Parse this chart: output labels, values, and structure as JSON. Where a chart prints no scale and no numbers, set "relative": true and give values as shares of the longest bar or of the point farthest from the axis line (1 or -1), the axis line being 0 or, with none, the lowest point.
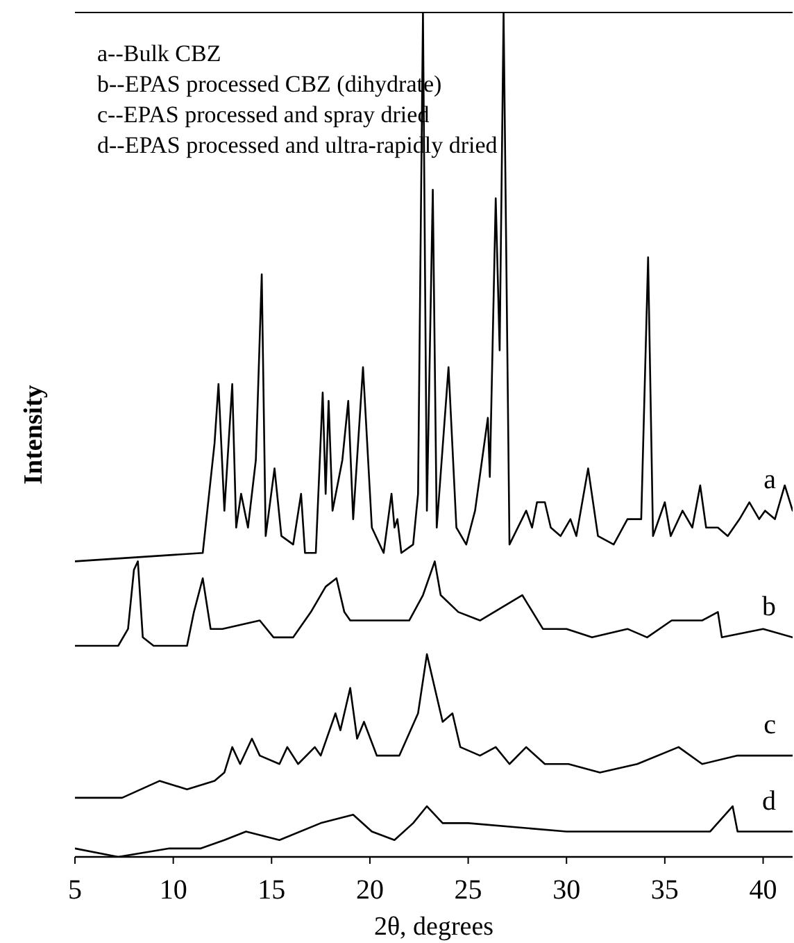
{
  "chart_data": {
    "type": "line",
    "relative": true,
    "xlabel": "2θ, degrees",
    "ylabel": "Intensity",
    "xlim": [
      5,
      41.5
    ],
    "xticks": [
      5,
      10,
      15,
      20,
      25,
      30,
      35,
      40
    ],
    "grid": false,
    "marker": "none",
    "line_style": "solid",
    "annotations": [
      "a--Bulk CBZ",
      "b--EPAS processed CBZ (dihydrate)",
      "c--EPAS processed and spray dried",
      "d--EPAS processed and ultra-rapidly dried"
    ],
    "series": [
      {
        "name": "a",
        "color": "#000000",
        "x": [
          5,
          11.5,
          12.1,
          12.3,
          12.6,
          13.0,
          13.2,
          13.45,
          13.8,
          14.2,
          14.5,
          14.7,
          15.15,
          15.5,
          16.1,
          16.5,
          16.7,
          17.25,
          17.6,
          17.75,
          17.9,
          18.1,
          18.6,
          18.9,
          19.15,
          19.65,
          20.1,
          20.7,
          21.1,
          21.25,
          21.4,
          21.6,
          22.2,
          22.45,
          22.7,
          22.9,
          23.2,
          23.4,
          24.0,
          24.4,
          24.9,
          25.35,
          26.0,
          26.1,
          26.4,
          26.6,
          26.8,
          27.1,
          27.95,
          28.25,
          28.5,
          28.9,
          29.2,
          29.7,
          30.2,
          30.5,
          31.1,
          31.6,
          32.4,
          33.1,
          33.8,
          34.15,
          34.4,
          35.0,
          35.3,
          35.9,
          36.4,
          36.8,
          37.1,
          37.7,
          38.2,
          38.8,
          39.3,
          39.8,
          40.1,
          40.6,
          41.1,
          41.5
        ],
        "values": [
          0.35,
          0.36,
          0.49,
          0.56,
          0.41,
          0.56,
          0.39,
          0.43,
          0.39,
          0.47,
          0.69,
          0.38,
          0.46,
          0.38,
          0.37,
          0.43,
          0.36,
          0.36,
          0.55,
          0.43,
          0.54,
          0.41,
          0.47,
          0.54,
          0.4,
          0.58,
          0.39,
          0.36,
          0.43,
          0.39,
          0.4,
          0.36,
          0.37,
          0.43,
          1,
          0.41,
          0.79,
          0.39,
          0.58,
          0.39,
          0.37,
          0.41,
          0.52,
          0.45,
          0.78,
          0.6,
          1,
          0.37,
          0.41,
          0.39,
          0.42,
          0.42,
          0.39,
          0.38,
          0.4,
          0.38,
          0.46,
          0.38,
          0.37,
          0.4,
          0.4,
          0.71,
          0.38,
          0.42,
          0.38,
          0.41,
          0.39,
          0.44,
          0.39,
          0.39,
          0.38,
          0.4,
          0.42,
          0.4,
          0.41,
          0.4,
          0.44,
          0.41
        ]
      },
      {
        "name": "b",
        "color": "#000000",
        "x": [
          5,
          7.2,
          7.7,
          8.0,
          8.2,
          8.45,
          9.0,
          10.7,
          11.05,
          11.5,
          11.9,
          12.5,
          14.4,
          15.1,
          16.1,
          17.0,
          17.75,
          18.3,
          18.7,
          19.0,
          20.35,
          22.0,
          22.7,
          23.3,
          23.6,
          24.5,
          25.6,
          27.75,
          28.8,
          30.0,
          31.3,
          33.1,
          34.1,
          35.35,
          36.9,
          37.7,
          37.9,
          40,
          41.5
        ],
        "values": [
          0.25,
          0.25,
          0.27,
          0.34,
          0.35,
          0.26,
          0.25,
          0.25,
          0.29,
          0.33,
          0.27,
          0.27,
          0.28,
          0.26,
          0.26,
          0.29,
          0.32,
          0.33,
          0.29,
          0.28,
          0.28,
          0.28,
          0.31,
          0.35,
          0.31,
          0.29,
          0.28,
          0.31,
          0.27,
          0.27,
          0.26,
          0.27,
          0.26,
          0.28,
          0.28,
          0.29,
          0.26,
          0.27,
          0.26
        ]
      },
      {
        "name": "c",
        "color": "#000000",
        "x": [
          5,
          7.4,
          9.3,
          10.7,
          12.1,
          12.6,
          13.0,
          13.4,
          14.0,
          14.4,
          15.4,
          15.8,
          16.35,
          17.2,
          17.5,
          18.25,
          18.5,
          19.0,
          19.35,
          19.7,
          20.35,
          21.05,
          21.5,
          22.45,
          22.9,
          23.4,
          23.7,
          24.2,
          24.6,
          25.6,
          26.4,
          27.1,
          27.95,
          28.9,
          30.1,
          31.7,
          33.6,
          35.7,
          36.9,
          38.7,
          41.5
        ],
        "values": [
          0.07,
          0.07,
          0.09,
          0.08,
          0.09,
          0.1,
          0.13,
          0.11,
          0.14,
          0.12,
          0.11,
          0.13,
          0.11,
          0.13,
          0.12,
          0.17,
          0.15,
          0.2,
          0.14,
          0.16,
          0.12,
          0.12,
          0.12,
          0.17,
          0.24,
          0.19,
          0.16,
          0.17,
          0.13,
          0.12,
          0.13,
          0.11,
          0.13,
          0.11,
          0.11,
          0.1,
          0.11,
          0.13,
          0.11,
          0.12,
          0.12
        ]
      },
      {
        "name": "d",
        "color": "#000000",
        "x": [
          5,
          7.2,
          9.8,
          11.4,
          12.6,
          13.7,
          15.4,
          17.5,
          19.15,
          20.1,
          21.25,
          22.2,
          22.9,
          23.7,
          25,
          30,
          35,
          37.3,
          38.45,
          38.7,
          41.5
        ],
        "values": [
          0.01,
          0.0,
          0.01,
          0.01,
          0.02,
          0.03,
          0.02,
          0.04,
          0.05,
          0.03,
          0.02,
          0.04,
          0.06,
          0.04,
          0.04,
          0.03,
          0.03,
          0.03,
          0.06,
          0.03,
          0.03
        ]
      }
    ]
  }
}
